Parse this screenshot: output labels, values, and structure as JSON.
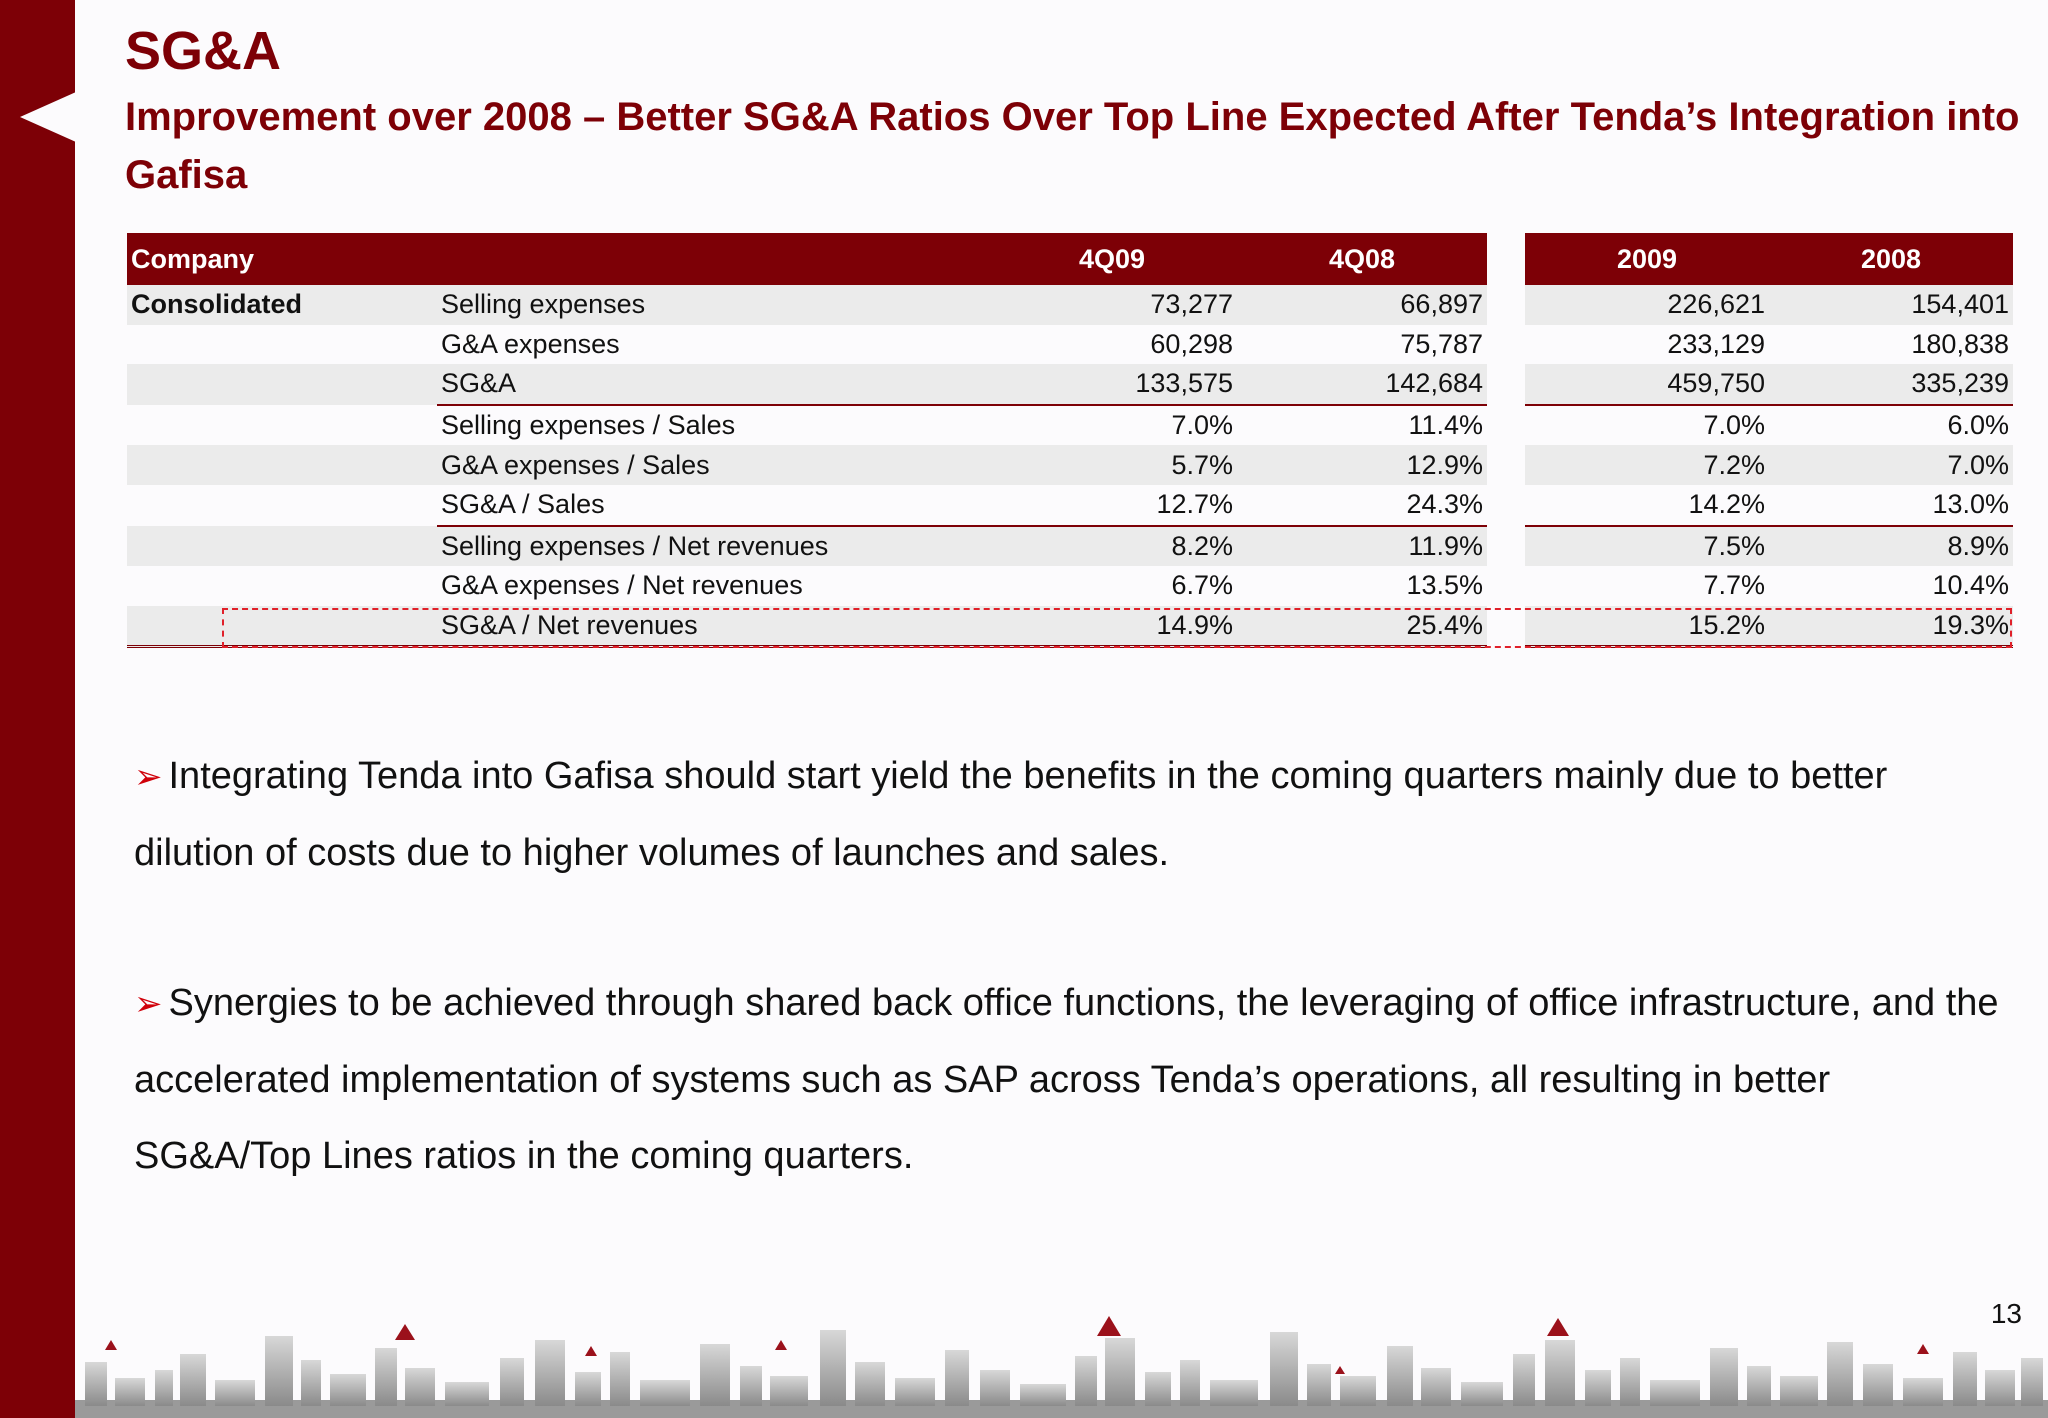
{
  "slide": {
    "title": "SG&A",
    "subtitle": "Improvement over 2008 – Better SG&A Ratios Over Top Line Expected After Tenda’s Integration into Gafisa",
    "page_number": "13",
    "accent_color": "#7d0006",
    "highlight_color": "#e0202a"
  },
  "table": {
    "headers": {
      "company": "Company",
      "q_current": "4Q09",
      "q_prior": "4Q08",
      "y_current": "2009",
      "y_prior": "2008"
    },
    "company": "Consolidated",
    "rows": [
      {
        "label": "Selling expenses",
        "q09": "73,277",
        "q08": "66,897",
        "y09": "226,621",
        "y08": "154,401"
      },
      {
        "label": "G&A expenses",
        "q09": "60,298",
        "q08": "75,787",
        "y09": "233,129",
        "y08": "180,838"
      },
      {
        "label": "SG&A",
        "q09": "133,575",
        "q08": "142,684",
        "y09": "459,750",
        "y08": "335,239"
      },
      {
        "label": "Selling expenses / Sales",
        "q09": "7.0%",
        "q08": "11.4%",
        "y09": "7.0%",
        "y08": "6.0%"
      },
      {
        "label": "G&A expenses / Sales",
        "q09": "5.7%",
        "q08": "12.9%",
        "y09": "7.2%",
        "y08": "7.0%"
      },
      {
        "label": "SG&A / Sales",
        "q09": "12.7%",
        "q08": "24.3%",
        "y09": "14.2%",
        "y08": "13.0%"
      },
      {
        "label": "Selling expenses / Net revenues",
        "q09": "8.2%",
        "q08": "11.9%",
        "y09": "7.5%",
        "y08": "8.9%"
      },
      {
        "label": "G&A expenses / Net revenues",
        "q09": "6.7%",
        "q08": "13.5%",
        "y09": "7.7%",
        "y08": "10.4%"
      },
      {
        "label": "SG&A / Net revenues",
        "q09": "14.9%",
        "q08": "25.4%",
        "y09": "15.2%",
        "y08": "19.3%"
      }
    ]
  },
  "bullets": [
    "Integrating Tenda into Gafisa should start yield the benefits in the coming quarters mainly due to better dilution of costs due to higher volumes of launches and sales.",
    "Synergies to be achieved through shared back office functions, the leveraging of office infrastructure, and the accelerated implementation of systems such as SAP across Tenda’s operations, all resulting in better SG&A/Top Lines ratios in the coming quarters."
  ]
}
